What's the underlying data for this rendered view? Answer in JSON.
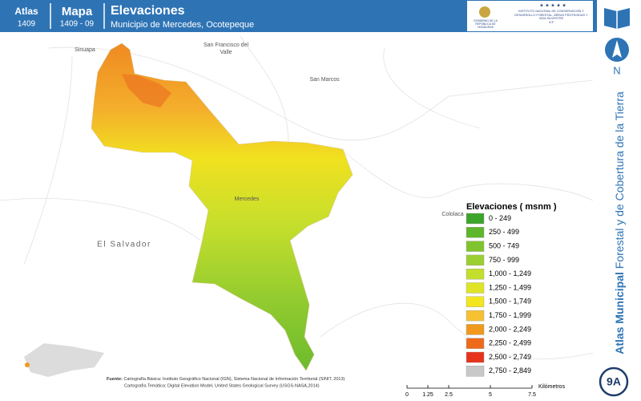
{
  "header": {
    "atlas_label": "Atlas",
    "atlas_number": "1409",
    "map_label": "Mapa",
    "map_number": "1409 - 09",
    "title": "Elevaciones",
    "subtitle": "Municipio de Mercedes, Ocotepeque",
    "logo_left": "GOBIERNO DE LA REPÚBLICA DE HONDURAS",
    "logo_right": "INSTITUTO NACIONAL DE CONSERVACIÓN Y DESARROLLO FORESTAL, ÁREAS PROTEGIDAS Y VIDA SILVESTRE",
    "logo_acronym": "ICF"
  },
  "places": [
    "Sinuapa",
    "San Francisco del Valle",
    "San Marcos",
    "Mercedes",
    "Cololaca",
    "El Salvador"
  ],
  "legend": {
    "title": "Elevaciones ( msnm )",
    "items": [
      {
        "label": "0 - 249",
        "color": "#3ba42b"
      },
      {
        "label": "250 - 499",
        "color": "#5db62b"
      },
      {
        "label": "500 - 749",
        "color": "#80c42d"
      },
      {
        "label": "750 - 999",
        "color": "#9ccf31"
      },
      {
        "label": "1,000 - 1,249",
        "color": "#c3df2b"
      },
      {
        "label": "1,250 - 1,499",
        "color": "#dfe526"
      },
      {
        "label": "1,500 - 1,749",
        "color": "#f3e61f"
      },
      {
        "label": "1,750 - 1,999",
        "color": "#f6c133"
      },
      {
        "label": "2,000 - 2,249",
        "color": "#f0991c"
      },
      {
        "label": "2,250 - 2,499",
        "color": "#ee6a1b"
      },
      {
        "label": "2,500 - 2,749",
        "color": "#e7331c"
      },
      {
        "label": "2,750 - 2,849",
        "color": "#c8c8c8"
      }
    ]
  },
  "source": {
    "label": "Fuente:",
    "line1": "Cartografía Básica: Instituto Geográfico Nacional (IGN), Sistema Nacional de Información Territorial (SINIT, 2013)",
    "line2": "Cartografía Temática: Digital Elevation Model, United States Geological Survey (USGS-NASA,2014)"
  },
  "scale": {
    "unit": "Kilómetros",
    "ticks": [
      0,
      1.25,
      2.5,
      5,
      7.5
    ]
  },
  "side": {
    "north": "N",
    "series_bold": "Atlas Municipal",
    "series_rest": " Forestal y de Cobertura de la Tierra",
    "sheet": "9A"
  }
}
